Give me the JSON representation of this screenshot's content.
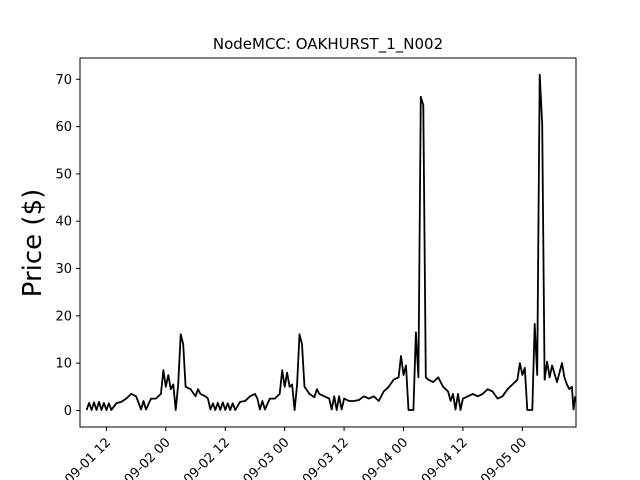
{
  "chart_data": {
    "type": "line",
    "title": "NodeMCC: OAKHURST_1_N002",
    "xlabel": "",
    "ylabel": "Price ($)",
    "grid": false,
    "legend": "none",
    "x_ticks": [
      "09-01 12",
      "09-02 00",
      "09-02 12",
      "09-03 00",
      "09-03 12",
      "09-04 00",
      "09-04 12",
      "09-05 00"
    ],
    "x_tick_labels": [
      "09-01 12",
      "09-02 00",
      "09-02 12",
      "09-03 00",
      "09-03 12",
      "09-04 00",
      "09-04 12",
      "09-05 00"
    ],
    "y_ticks": [
      0,
      10,
      20,
      30,
      40,
      50,
      60,
      70
    ],
    "y_tick_labels": [
      "0",
      "10",
      "20",
      "30",
      "40",
      "50",
      "60",
      "70"
    ],
    "xlim": [
      "2024-09-01 06:40",
      "2024-09-05 10:50"
    ],
    "ylim": [
      -3.5,
      74.5
    ],
    "series": [
      {
        "color": "#000000",
        "points": [
          [
            "2024-09-01 08:00",
            0.1
          ],
          [
            "2024-09-01 08:30",
            1.6
          ],
          [
            "2024-09-01 09:00",
            0.1
          ],
          [
            "2024-09-01 09:30",
            1.7
          ],
          [
            "2024-09-01 10:00",
            0.1
          ],
          [
            "2024-09-01 10:30",
            1.8
          ],
          [
            "2024-09-01 11:00",
            0.1
          ],
          [
            "2024-09-01 11:30",
            1.6
          ],
          [
            "2024-09-01 12:00",
            0.1
          ],
          [
            "2024-09-01 12:30",
            1.5
          ],
          [
            "2024-09-01 13:00",
            0.1
          ],
          [
            "2024-09-01 14:00",
            1.5
          ],
          [
            "2024-09-01 15:00",
            1.8
          ],
          [
            "2024-09-01 16:00",
            2.5
          ],
          [
            "2024-09-01 17:00",
            3.5
          ],
          [
            "2024-09-01 18:00",
            3.0
          ],
          [
            "2024-09-01 19:00",
            0.2
          ],
          [
            "2024-09-01 19:30",
            2.0
          ],
          [
            "2024-09-01 20:00",
            0.2
          ],
          [
            "2024-09-01 21:00",
            2.5
          ],
          [
            "2024-09-01 22:00",
            2.5
          ],
          [
            "2024-09-01 23:00",
            3.5
          ],
          [
            "2024-09-01 23:30",
            8.5
          ],
          [
            "2024-09-02 00:00",
            5.0
          ],
          [
            "2024-09-02 00:30",
            7.5
          ],
          [
            "2024-09-02 01:00",
            4.5
          ],
          [
            "2024-09-02 01:30",
            5.5
          ],
          [
            "2024-09-02 02:00",
            0.1
          ],
          [
            "2024-09-02 02:30",
            5.5
          ],
          [
            "2024-09-02 03:00",
            16.1
          ],
          [
            "2024-09-02 03:30",
            14.0
          ],
          [
            "2024-09-02 04:00",
            5.0
          ],
          [
            "2024-09-02 05:00",
            4.5
          ],
          [
            "2024-09-02 06:00",
            3.0
          ],
          [
            "2024-09-02 06:30",
            4.5
          ],
          [
            "2024-09-02 07:00",
            3.5
          ],
          [
            "2024-09-02 08:00",
            3.0
          ],
          [
            "2024-09-02 08:30",
            2.5
          ],
          [
            "2024-09-02 09:00",
            0.2
          ],
          [
            "2024-09-02 09:30",
            1.5
          ],
          [
            "2024-09-02 10:00",
            0.1
          ],
          [
            "2024-09-02 10:30",
            1.6
          ],
          [
            "2024-09-02 11:00",
            0.1
          ],
          [
            "2024-09-02 11:30",
            1.7
          ],
          [
            "2024-09-02 12:00",
            0.1
          ],
          [
            "2024-09-02 12:30",
            1.5
          ],
          [
            "2024-09-02 13:00",
            0.1
          ],
          [
            "2024-09-02 13:30",
            1.5
          ],
          [
            "2024-09-02 14:00",
            0.1
          ],
          [
            "2024-09-02 15:00",
            1.8
          ],
          [
            "2024-09-02 16:00",
            2.0
          ],
          [
            "2024-09-02 17:00",
            3.0
          ],
          [
            "2024-09-02 18:00",
            3.5
          ],
          [
            "2024-09-02 18:30",
            2.5
          ],
          [
            "2024-09-02 19:00",
            0.2
          ],
          [
            "2024-09-02 19:30",
            2.0
          ],
          [
            "2024-09-02 20:00",
            0.2
          ],
          [
            "2024-09-02 21:00",
            2.5
          ],
          [
            "2024-09-02 22:00",
            2.5
          ],
          [
            "2024-09-02 23:00",
            3.5
          ],
          [
            "2024-09-02 23:30",
            8.5
          ],
          [
            "2024-09-03 00:00",
            5.0
          ],
          [
            "2024-09-03 00:30",
            8.0
          ],
          [
            "2024-09-03 01:00",
            5.0
          ],
          [
            "2024-09-03 01:30",
            5.5
          ],
          [
            "2024-09-03 02:00",
            0.1
          ],
          [
            "2024-09-03 02:30",
            5.5
          ],
          [
            "2024-09-03 03:00",
            16.1
          ],
          [
            "2024-09-03 03:30",
            14.0
          ],
          [
            "2024-09-03 04:00",
            5.0
          ],
          [
            "2024-09-03 05:00",
            3.5
          ],
          [
            "2024-09-03 06:00",
            2.8
          ],
          [
            "2024-09-03 06:30",
            4.5
          ],
          [
            "2024-09-03 07:00",
            3.5
          ],
          [
            "2024-09-03 08:00",
            3.0
          ],
          [
            "2024-09-03 09:00",
            2.5
          ],
          [
            "2024-09-03 09:30",
            0.2
          ],
          [
            "2024-09-03 10:00",
            3.0
          ],
          [
            "2024-09-03 10:30",
            0.1
          ],
          [
            "2024-09-03 11:00",
            3.0
          ],
          [
            "2024-09-03 11:30",
            0.2
          ],
          [
            "2024-09-03 12:00",
            2.5
          ],
          [
            "2024-09-03 13:00",
            2.0
          ],
          [
            "2024-09-03 14:00",
            2.0
          ],
          [
            "2024-09-03 15:00",
            2.2
          ],
          [
            "2024-09-03 16:00",
            3.0
          ],
          [
            "2024-09-03 17:00",
            2.5
          ],
          [
            "2024-09-03 18:00",
            3.0
          ],
          [
            "2024-09-03 19:00",
            2.0
          ],
          [
            "2024-09-03 20:00",
            4.0
          ],
          [
            "2024-09-03 21:00",
            5.0
          ],
          [
            "2024-09-03 22:00",
            6.5
          ],
          [
            "2024-09-03 23:00",
            7.0
          ],
          [
            "2024-09-03 23:30",
            11.5
          ],
          [
            "2024-09-04 00:00",
            7.5
          ],
          [
            "2024-09-04 00:30",
            9.5
          ],
          [
            "2024-09-04 01:00",
            0.1
          ],
          [
            "2024-09-04 02:00",
            0.1
          ],
          [
            "2024-09-04 02:30",
            16.5
          ],
          [
            "2024-09-04 03:00",
            7.0
          ],
          [
            "2024-09-04 03:30",
            66.3
          ],
          [
            "2024-09-04 04:00",
            64.5
          ],
          [
            "2024-09-04 04:30",
            7.0
          ],
          [
            "2024-09-04 05:00",
            6.5
          ],
          [
            "2024-09-04 06:00",
            6.0
          ],
          [
            "2024-09-04 07:00",
            7.0
          ],
          [
            "2024-09-04 08:00",
            5.0
          ],
          [
            "2024-09-04 09:00",
            4.0
          ],
          [
            "2024-09-04 09:30",
            2.0
          ],
          [
            "2024-09-04 10:00",
            3.5
          ],
          [
            "2024-09-04 10:30",
            0.2
          ],
          [
            "2024-09-04 11:00",
            3.5
          ],
          [
            "2024-09-04 11:30",
            0.1
          ],
          [
            "2024-09-04 12:00",
            2.5
          ],
          [
            "2024-09-04 13:00",
            3.0
          ],
          [
            "2024-09-04 14:00",
            3.5
          ],
          [
            "2024-09-04 15:00",
            3.0
          ],
          [
            "2024-09-04 16:00",
            3.5
          ],
          [
            "2024-09-04 17:00",
            4.5
          ],
          [
            "2024-09-04 18:00",
            4.0
          ],
          [
            "2024-09-04 19:00",
            2.5
          ],
          [
            "2024-09-04 20:00",
            3.0
          ],
          [
            "2024-09-04 21:00",
            4.5
          ],
          [
            "2024-09-04 22:00",
            5.5
          ],
          [
            "2024-09-04 23:00",
            6.5
          ],
          [
            "2024-09-04 23:30",
            10.0
          ],
          [
            "2024-09-05 00:00",
            7.5
          ],
          [
            "2024-09-05 00:30",
            9.0
          ],
          [
            "2024-09-05 01:00",
            0.1
          ],
          [
            "2024-09-05 02:00",
            0.1
          ],
          [
            "2024-09-05 02:30",
            18.3
          ],
          [
            "2024-09-05 03:00",
            7.5
          ],
          [
            "2024-09-05 03:30",
            71.0
          ],
          [
            "2024-09-05 04:00",
            60.5
          ],
          [
            "2024-09-05 04:30",
            6.5
          ],
          [
            "2024-09-05 05:00",
            10.3
          ],
          [
            "2024-09-05 05:30",
            7.0
          ],
          [
            "2024-09-05 06:00",
            9.5
          ],
          [
            "2024-09-05 07:00",
            6.0
          ],
          [
            "2024-09-05 08:00",
            10.0
          ],
          [
            "2024-09-05 08:30",
            7.0
          ],
          [
            "2024-09-05 09:00",
            5.5
          ],
          [
            "2024-09-05 09:30",
            4.5
          ],
          [
            "2024-09-05 10:00",
            5.0
          ],
          [
            "2024-09-05 10:20",
            0.2
          ],
          [
            "2024-09-05 10:40",
            3.0
          ]
        ]
      }
    ]
  }
}
